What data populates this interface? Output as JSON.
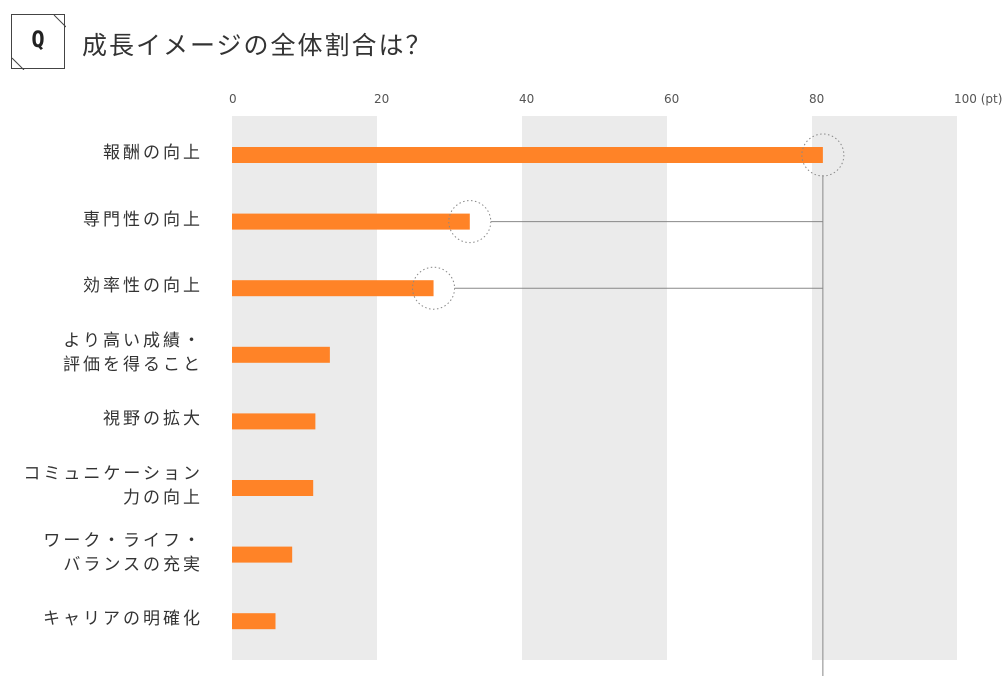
{
  "header": {
    "badge": "Q",
    "title": "成長イメージの全体割合は？"
  },
  "chart_data": {
    "type": "bar",
    "orientation": "horizontal",
    "title": "成長イメージの全体割合は？",
    "x_tick_labels": [
      "0",
      "20",
      "40",
      "60",
      "80",
      "100 (pt)"
    ],
    "xlim": [
      0,
      100
    ],
    "grid": "alternating shaded bands",
    "categories": [
      {
        "lines": [
          "報酬の向上"
        ]
      },
      {
        "lines": [
          "専門性の向上"
        ]
      },
      {
        "lines": [
          "効率性の向上"
        ]
      },
      {
        "lines": [
          "より高い成績・",
          "評価を得ること"
        ]
      },
      {
        "lines": [
          "視野の拡大"
        ]
      },
      {
        "lines": [
          "コミュニケーション",
          "力の向上"
        ]
      },
      {
        "lines": [
          "ワーク・ライフ・",
          "バランスの充実"
        ]
      },
      {
        "lines": [
          "キャリアの明確化"
        ]
      }
    ],
    "values": [
      81.5,
      32.8,
      27.8,
      13.5,
      11.5,
      11.2,
      8.3,
      6.0
    ],
    "highlighted": [
      0,
      1,
      2
    ],
    "colors": {
      "bar": "#ff8327",
      "band": "#ebebeb",
      "connector": "#888888",
      "text": "#333333"
    }
  }
}
